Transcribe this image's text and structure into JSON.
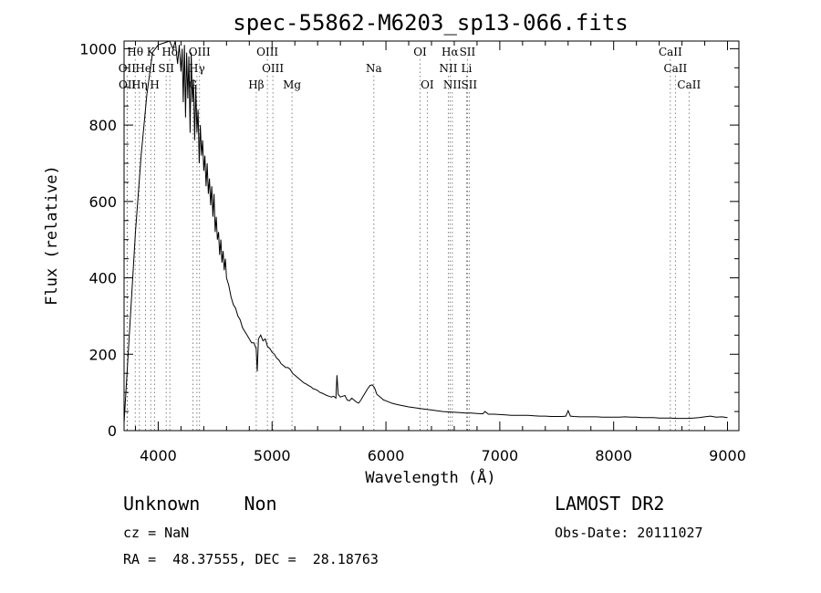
{
  "chart_data": {
    "type": "line",
    "title": "spec-55862-M6203_sp13-066.fits",
    "xlabel": "Wavelength (Å)",
    "ylabel": "Flux (relative)",
    "xlim": [
      3700,
      9100
    ],
    "ylim": [
      0,
      1020
    ],
    "xticks": [
      4000,
      5000,
      6000,
      7000,
      8000,
      9000
    ],
    "yticks": [
      0,
      200,
      400,
      600,
      800,
      1000
    ],
    "grid": false,
    "series": [
      {
        "x": [
          3700,
          3720,
          3760,
          3800,
          3850,
          3900,
          3950,
          4000,
          4050,
          4100,
          4130,
          4150,
          4170,
          4185,
          4200,
          4210,
          4220,
          4230,
          4240,
          4250,
          4260,
          4270,
          4280,
          4290,
          4300,
          4310,
          4320,
          4330,
          4340,
          4350,
          4360,
          4370,
          4380,
          4390,
          4400,
          4410,
          4420,
          4430,
          4440,
          4450,
          4460,
          4470,
          4480,
          4490,
          4500,
          4510,
          4520,
          4530,
          4540,
          4550,
          4560,
          4570,
          4580,
          4590,
          4600,
          4620,
          4640,
          4660,
          4680,
          4700,
          4720,
          4740,
          4760,
          4780,
          4800,
          4820,
          4840,
          4860,
          4870,
          4880,
          4900,
          4920,
          4940,
          4960,
          4980,
          5000,
          5020,
          5040,
          5060,
          5080,
          5100,
          5120,
          5140,
          5160,
          5180,
          5200,
          5220,
          5240,
          5260,
          5280,
          5300,
          5320,
          5340,
          5360,
          5380,
          5400,
          5420,
          5440,
          5460,
          5480,
          5500,
          5520,
          5540,
          5560,
          5570,
          5580,
          5600,
          5620,
          5640,
          5660,
          5680,
          5700,
          5720,
          5740,
          5760,
          5780,
          5800,
          5820,
          5840,
          5860,
          5880,
          5900,
          5920,
          5940,
          5960,
          5980,
          6000,
          6050,
          6100,
          6150,
          6200,
          6250,
          6300,
          6350,
          6400,
          6450,
          6500,
          6550,
          6600,
          6650,
          6700,
          6750,
          6800,
          6850,
          6870,
          6900,
          6950,
          7000,
          7050,
          7100,
          7150,
          7200,
          7250,
          7300,
          7350,
          7400,
          7450,
          7500,
          7550,
          7580,
          7600,
          7620,
          7650,
          7700,
          7750,
          7800,
          7850,
          7900,
          7950,
          8000,
          8050,
          8100,
          8150,
          8200,
          8250,
          8300,
          8350,
          8400,
          8450,
          8500,
          8550,
          8600,
          8650,
          8700,
          8750,
          8800,
          8850,
          8900,
          8950,
          9000
        ],
        "y": [
          20,
          120,
          320,
          520,
          720,
          880,
          990,
          1010,
          1015,
          1020,
          1000,
          1020,
          960,
          1010,
          940,
          1000,
          860,
          1010,
          820,
          990,
          870,
          980,
          780,
          990,
          860,
          920,
          760,
          900,
          780,
          840,
          700,
          800,
          720,
          760,
          680,
          720,
          640,
          700,
          620,
          660,
          590,
          640,
          560,
          620,
          520,
          560,
          500,
          520,
          460,
          500,
          440,
          470,
          420,
          450,
          400,
          380,
          350,
          330,
          320,
          300,
          290,
          270,
          260,
          250,
          240,
          230,
          230,
          215,
          155,
          240,
          250,
          235,
          240,
          220,
          215,
          205,
          200,
          190,
          185,
          175,
          170,
          165,
          165,
          160,
          150,
          145,
          140,
          135,
          130,
          125,
          122,
          118,
          115,
          110,
          108,
          105,
          100,
          98,
          95,
          92,
          90,
          88,
          90,
          85,
          145,
          95,
          88,
          90,
          92,
          80,
          78,
          85,
          80,
          75,
          72,
          80,
          90,
          100,
          110,
          118,
          120,
          112,
          95,
          90,
          85,
          80,
          78,
          72,
          68,
          65,
          62,
          60,
          58,
          56,
          54,
          52,
          50,
          49,
          48,
          47,
          46,
          46,
          45,
          44,
          50,
          43,
          43,
          42,
          41,
          40,
          40,
          40,
          40,
          39,
          38,
          38,
          37,
          37,
          37,
          38,
          52,
          38,
          37,
          36,
          36,
          36,
          36,
          35,
          35,
          35,
          35,
          36,
          35,
          35,
          34,
          34,
          34,
          33,
          33,
          33,
          32,
          32,
          32,
          33,
          34,
          36,
          38,
          35,
          36,
          34
        ]
      }
    ],
    "line_markers": [
      {
        "label": "Hθ",
        "wl": 3798,
        "row": 0
      },
      {
        "label": "K",
        "wl": 3934,
        "row": 0
      },
      {
        "label": "H",
        "wl": 3969,
        "row": 2
      },
      {
        "label": "Hδ",
        "wl": 4102,
        "row": 0
      },
      {
        "label": "OIII",
        "wl": 4363,
        "row": 0
      },
      {
        "label": "OIII",
        "wl": 4959,
        "row": 0
      },
      {
        "label": "OIII",
        "wl": 5007,
        "row": 1
      },
      {
        "label": "OII",
        "wl": 3727,
        "row": 1
      },
      {
        "label": "OII",
        "wl": 3729,
        "row": 2
      },
      {
        "label": "Hη",
        "wl": 3835,
        "row": 2
      },
      {
        "label": "HeI",
        "wl": 3889,
        "row": 1
      },
      {
        "label": "SII",
        "wl": 4070,
        "row": 1
      },
      {
        "label": "Hγ",
        "wl": 4340,
        "row": 1
      },
      {
        "label": "G",
        "wl": 4304,
        "row": 2
      },
      {
        "label": "Hβ",
        "wl": 4861,
        "row": 2
      },
      {
        "label": "Mg",
        "wl": 5175,
        "row": 2
      },
      {
        "label": "Na",
        "wl": 5894,
        "row": 1
      },
      {
        "label": "OI",
        "wl": 6300,
        "row": 0
      },
      {
        "label": "OI",
        "wl": 6363,
        "row": 2
      },
      {
        "label": "Hα",
        "wl": 6563,
        "row": 0
      },
      {
        "label": "SII",
        "wl": 6716,
        "row": 0
      },
      {
        "label": "NII",
        "wl": 6548,
        "row": 1
      },
      {
        "label": "Li",
        "wl": 6708,
        "row": 1
      },
      {
        "label": "NII",
        "wl": 6583,
        "row": 2
      },
      {
        "label": "SII",
        "wl": 6731,
        "row": 2
      },
      {
        "label": "CaII",
        "wl": 8498,
        "row": 0
      },
      {
        "label": "CaII",
        "wl": 8542,
        "row": 1
      },
      {
        "label": "CaII",
        "wl": 8662,
        "row": 2
      }
    ]
  },
  "footer": {
    "class_text": "Unknown    Non",
    "cz_text": "cz = NaN",
    "radec_text": "RA =  48.37555, DEC =  28.18763",
    "survey_text": "LAMOST DR2",
    "obsdate_text": "Obs-Date: 20111027"
  }
}
